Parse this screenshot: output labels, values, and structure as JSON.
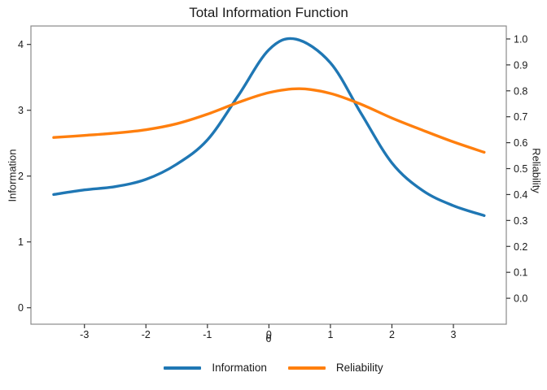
{
  "title": "Total Information Function",
  "colors": {
    "information": "#1f77b4",
    "reliability": "#ff7f0e",
    "axis_line": "#8a8a8a",
    "tick": "#333333",
    "text": "#1a1a1a"
  },
  "legend": {
    "items": [
      {
        "label": "Information"
      },
      {
        "label": "Reliability"
      }
    ]
  },
  "chart_data": {
    "type": "line",
    "title": "Total Information Function",
    "xlabel": "θ",
    "ylabel_left": "Information",
    "ylabel_right": "Reliability",
    "grid": false,
    "legend_position": "bottom",
    "x_ticks": [
      "-3",
      "-2",
      "-1",
      "0",
      "1",
      "2",
      "3"
    ],
    "x_range": [
      -3.87,
      3.86
    ],
    "y_left_ticks": [
      "0",
      "1",
      "2",
      "3",
      "4"
    ],
    "y_left_range": [
      -0.25,
      4.28
    ],
    "y_right_ticks": [
      "0.0",
      "0.1",
      "0.2",
      "0.3",
      "0.4",
      "0.5",
      "0.6",
      "0.7",
      "0.8",
      "0.9",
      "1.0"
    ],
    "y_right_range": [
      -0.1,
      1.05
    ],
    "series": [
      {
        "name": "Information",
        "axis": "left",
        "color": "#1f77b4",
        "x": [
          -3.5,
          -3.0,
          -2.5,
          -2.0,
          -1.5,
          -1.0,
          -0.5,
          0.0,
          0.44,
          1.0,
          1.5,
          2.0,
          2.5,
          3.0,
          3.5
        ],
        "values": [
          1.72,
          1.79,
          1.84,
          1.95,
          2.18,
          2.55,
          3.22,
          3.92,
          4.08,
          3.72,
          2.95,
          2.2,
          1.78,
          1.55,
          1.4
        ]
      },
      {
        "name": "Reliability",
        "axis": "right",
        "color": "#ff7f0e",
        "x": [
          -3.5,
          -3.0,
          -2.5,
          -2.0,
          -1.5,
          -1.0,
          -0.5,
          0.0,
          0.5,
          1.0,
          1.5,
          2.0,
          2.5,
          3.0,
          3.5
        ],
        "values": [
          0.62,
          0.628,
          0.637,
          0.65,
          0.673,
          0.71,
          0.755,
          0.793,
          0.808,
          0.79,
          0.748,
          0.695,
          0.648,
          0.603,
          0.563
        ]
      }
    ]
  }
}
